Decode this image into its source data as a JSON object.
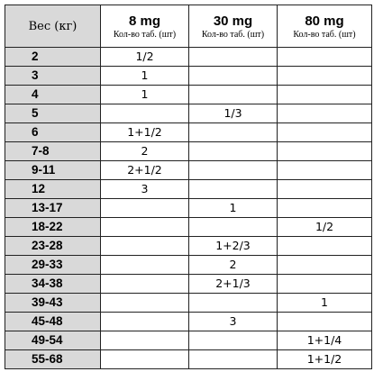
{
  "table": {
    "headers": {
      "weight": "Вес (кг)",
      "columns": [
        {
          "dose": "8 mg",
          "sub": "Кол-во таб. (шт)"
        },
        {
          "dose": "30 mg",
          "sub": "Кол-во таб. (шт)"
        },
        {
          "dose": "80 mg",
          "sub": "Кол-во таб. (шт)"
        }
      ]
    },
    "rows": [
      {
        "weight": "2",
        "mg8": "1/2",
        "mg30": "",
        "mg80": ""
      },
      {
        "weight": "3",
        "mg8": "1",
        "mg30": "",
        "mg80": ""
      },
      {
        "weight": "4",
        "mg8": "1",
        "mg30": "",
        "mg80": ""
      },
      {
        "weight": "5",
        "mg8": "",
        "mg30": "1/3",
        "mg80": ""
      },
      {
        "weight": "6",
        "mg8": "1+1/2",
        "mg30": "",
        "mg80": ""
      },
      {
        "weight": "7-8",
        "mg8": "2",
        "mg30": "",
        "mg80": ""
      },
      {
        "weight": "9-11",
        "mg8": "2+1/2",
        "mg30": "",
        "mg80": ""
      },
      {
        "weight": "12",
        "mg8": "3",
        "mg30": "",
        "mg80": ""
      },
      {
        "weight": "13-17",
        "mg8": "",
        "mg30": "1",
        "mg80": ""
      },
      {
        "weight": "18-22",
        "mg8": "",
        "mg30": "",
        "mg80": "1/2"
      },
      {
        "weight": "23-28",
        "mg8": "",
        "mg30": "1+2/3",
        "mg80": ""
      },
      {
        "weight": "29-33",
        "mg8": "",
        "mg30": "2",
        "mg80": ""
      },
      {
        "weight": "34-38",
        "mg8": "",
        "mg30": "2+1/3",
        "mg80": ""
      },
      {
        "weight": "39-43",
        "mg8": "",
        "mg30": "",
        "mg80": "1"
      },
      {
        "weight": "45-48",
        "mg8": "",
        "mg30": "3",
        "mg80": ""
      },
      {
        "weight": "49-54",
        "mg8": "",
        "mg30": "",
        "mg80": "1+1/4"
      },
      {
        "weight": "55-68",
        "mg8": "",
        "mg30": "",
        "mg80": "1+1/2"
      }
    ]
  }
}
